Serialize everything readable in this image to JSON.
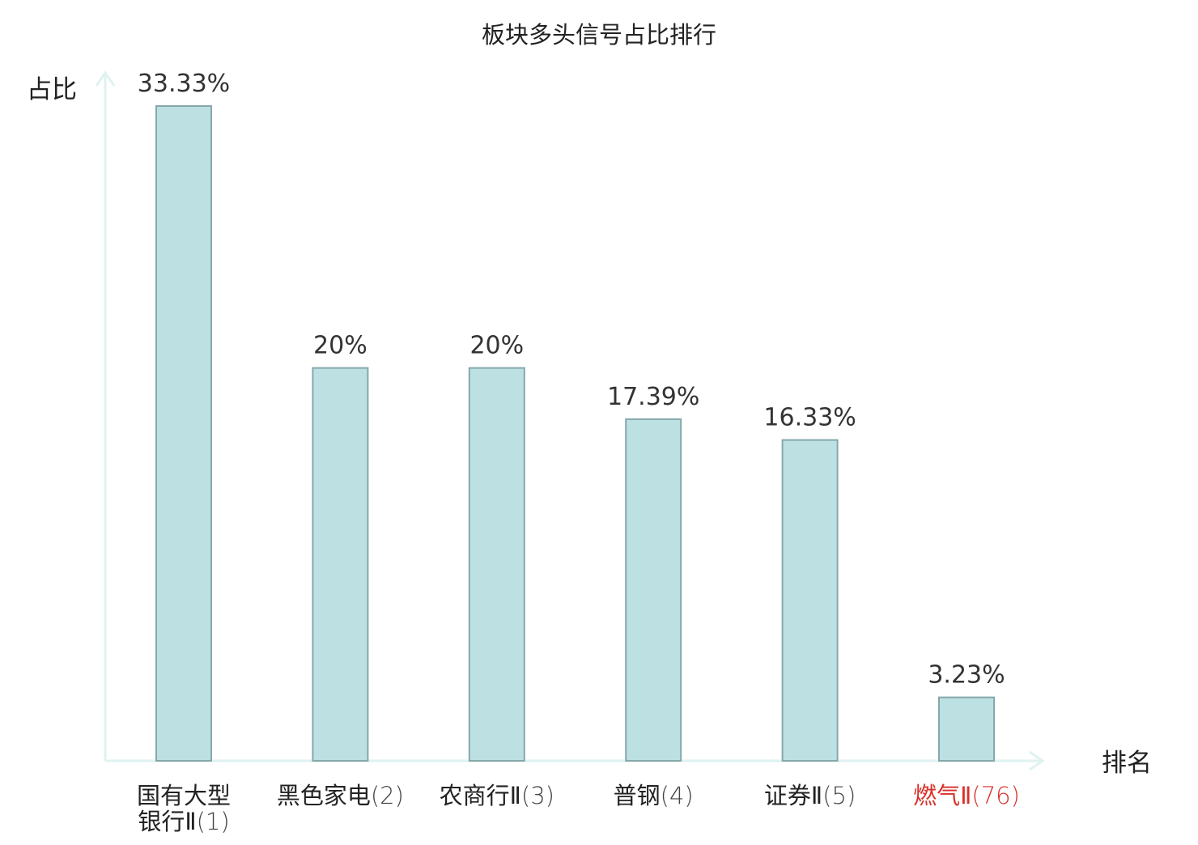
{
  "chart_data": {
    "type": "bar",
    "title": "板块多头信号占比排行",
    "ylabel": "占比",
    "xlabel": "排名",
    "categories": [
      "国有大型银行Ⅱ(1)",
      "黑色家电(2)",
      "农商行Ⅱ(3)",
      "普钢(4)",
      "证券Ⅱ(5)",
      "燃气Ⅱ(76)"
    ],
    "category_lines": [
      [
        {
          "t": "国有大型",
          "paren": false
        },
        {
          "t": "银行Ⅱ",
          "paren": false
        }
      ],
      [
        {
          "t": "黑色家电",
          "paren": false
        }
      ],
      [
        {
          "t": "农商行Ⅱ",
          "paren": false
        }
      ],
      [
        {
          "t": "普钢",
          "paren": false
        }
      ],
      [
        {
          "t": "证券Ⅱ",
          "paren": false
        }
      ],
      [
        {
          "t": "燃气Ⅱ",
          "paren": false
        }
      ]
    ],
    "rank_labels": [
      "(1)",
      "(2)",
      "(3)",
      "(4)",
      "(5)",
      "(76)"
    ],
    "values": [
      33.33,
      20,
      20,
      17.39,
      16.33,
      3.23
    ],
    "value_labels": [
      "33.33%",
      "20%",
      "20%",
      "17.39%",
      "16.33%",
      "3.23%"
    ],
    "highlight_index": 5,
    "ylim": [
      0,
      35
    ],
    "grid": false,
    "legend": "none"
  },
  "colors": {
    "bar_fill": "#bde0e3",
    "bar_stroke": "#86a8ab",
    "axis": "#dff2ef",
    "text": "#222222",
    "value_text": "#333333",
    "rank_text": "#444444",
    "highlight": "#d9302a"
  }
}
